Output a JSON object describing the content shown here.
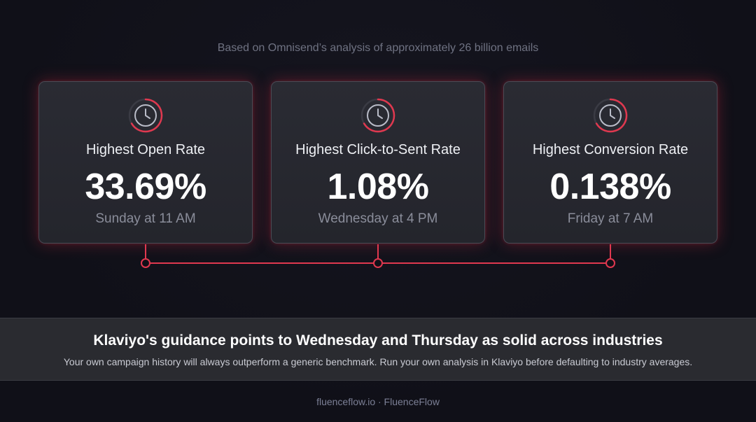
{
  "subtitle": "Based on Omnisend’s analysis of approximately 26 billion emails",
  "cards": [
    {
      "icon": "clock-icon",
      "label": "Highest Open Rate",
      "value": "33.69%",
      "when": "Sunday at 11 AM"
    },
    {
      "icon": "clock-icon",
      "label": "Highest Click-to-Sent Rate",
      "value": "1.08%",
      "when": "Wednesday at 4 PM"
    },
    {
      "icon": "clock-icon",
      "label": "Highest Conversion Rate",
      "value": "0.138%",
      "when": "Friday at 7 AM"
    }
  ],
  "banner": {
    "title": "Klaviyo's guidance points to Wednesday and Thursday as solid across industries",
    "text": "Your own campaign history will always outperform a generic benchmark. Run your own analysis in Klaviyo before defaulting to industry averages."
  },
  "footer": "fluenceflow.io · FluenceFlow",
  "colors": {
    "accent": "#e0384f",
    "background": "#101018",
    "card": "#26272e"
  }
}
